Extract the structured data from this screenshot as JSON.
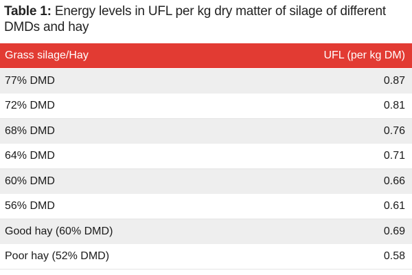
{
  "caption": {
    "label": "Table 1:",
    "text": " Energy levels in UFL per kg dry matter of silage of different DMDs and hay"
  },
  "colors": {
    "header_bg": "#e23b33",
    "odd_row_bg": "#eeeeee",
    "even_row_bg": "#ffffff"
  },
  "table": {
    "headers": [
      "Grass silage/Hay",
      "UFL (per kg DM)"
    ],
    "rows": [
      [
        "77% DMD",
        "0.87"
      ],
      [
        "72% DMD",
        "0.81"
      ],
      [
        "68% DMD",
        "0.76"
      ],
      [
        "64% DMD",
        "0.71"
      ],
      [
        "60% DMD",
        "0.66"
      ],
      [
        "56% DMD",
        "0.61"
      ],
      [
        "Good hay (60% DMD)",
        "0.69"
      ],
      [
        "Poor hay (52% DMD)",
        "0.58"
      ]
    ]
  }
}
